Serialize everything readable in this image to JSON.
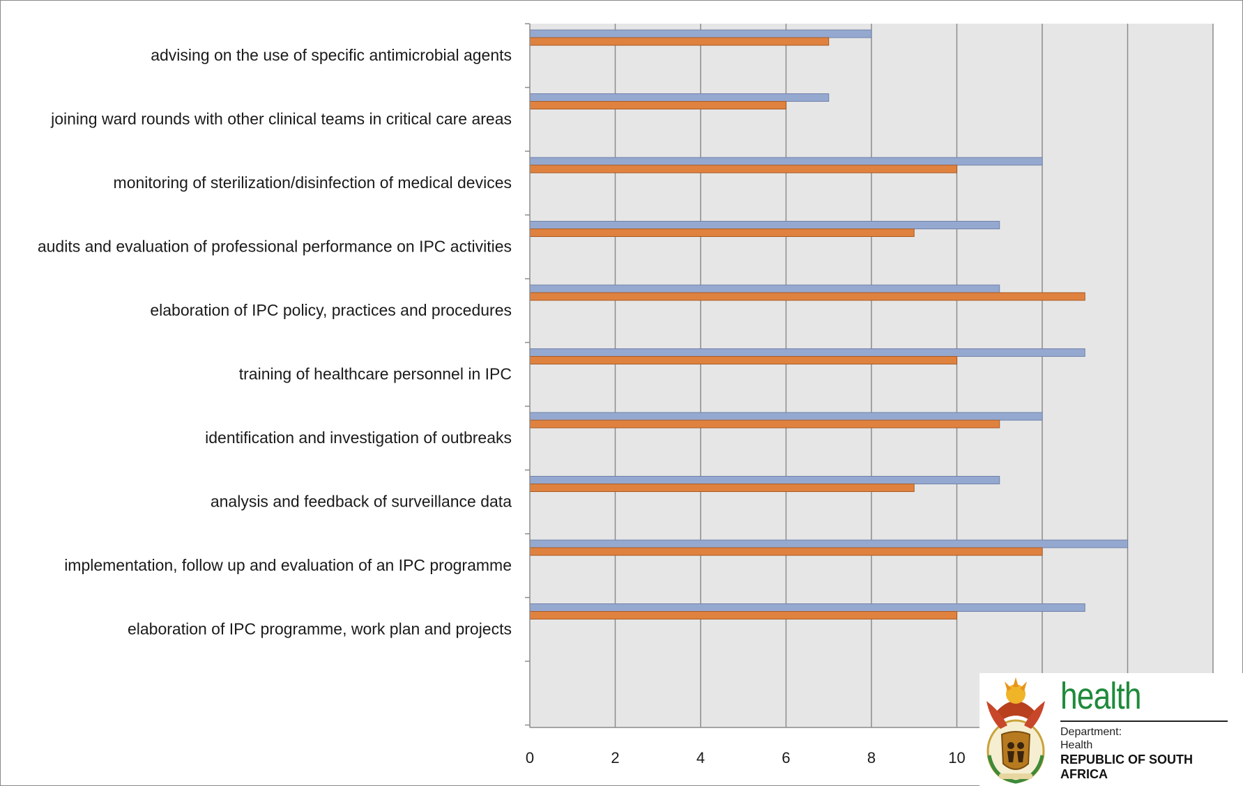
{
  "chart_data": {
    "type": "bar",
    "orientation": "horizontal",
    "categories": [
      "advising on the use of specific antimicrobial agents",
      "joining ward rounds with other clinical teams in critical care areas",
      "monitoring of sterilization/disinfection of medical devices",
      "audits and evaluation of professional performance on IPC activities",
      "elaboration of IPC policy, practices and procedures",
      "training of healthcare personnel in IPC",
      "identification and investigation of outbreaks",
      "analysis and feedback of surveillance data",
      "implementation, follow up and evaluation of an IPC programme",
      "elaboration of IPC programme, work plan and projects"
    ],
    "series": [
      {
        "values": [
          8,
          7,
          12,
          11,
          11,
          13,
          12,
          11,
          14,
          13
        ],
        "color": "#95a8cf"
      },
      {
        "values": [
          7,
          6,
          10,
          9,
          13,
          10,
          11,
          9,
          12,
          10
        ],
        "color": "#e0823f"
      }
    ],
    "xlim": [
      0,
      16
    ],
    "xticks": [
      0,
      2,
      4,
      6,
      8,
      10
    ],
    "grid": true,
    "plot_background": "#e6e6e6",
    "gridline_color": "#8c8c8c"
  },
  "logo": {
    "word": "health",
    "line1": "Department:",
    "line2": "Health",
    "line3": "REPUBLIC OF SOUTH AFRICA"
  }
}
